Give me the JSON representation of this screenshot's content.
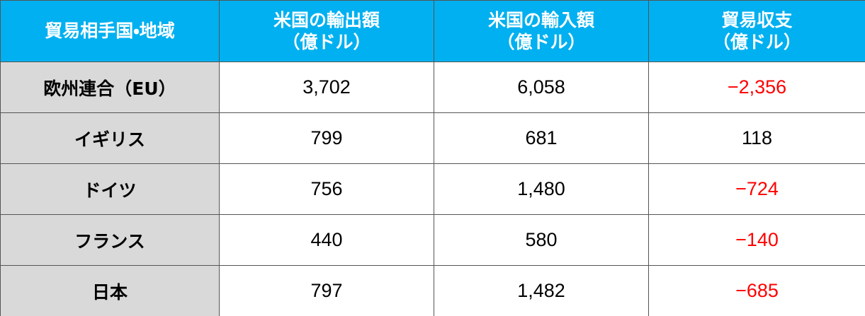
{
  "table": {
    "header": [
      "貿易相手国・地域",
      "米国の輸出額\n（億ドル）",
      "米国の輸入額\n（億ドル）",
      "貿易収支\n（億ドル）"
    ],
    "rows": [
      [
        "欧州連合（EU）",
        "3,702",
        "6,058",
        "−2,356"
      ],
      [
        "イギリス",
        "799",
        "681",
        "118"
      ],
      [
        "ドイツ",
        "756",
        "1,480",
        "−724"
      ],
      [
        "フランス",
        "440",
        "580",
        "−140"
      ],
      [
        "日本",
        "797",
        "1,482",
        "−685"
      ]
    ],
    "header_color": "#00b0f0",
    "first_column_color": "#d9d9d9",
    "negative_color": "#ff0000"
  }
}
